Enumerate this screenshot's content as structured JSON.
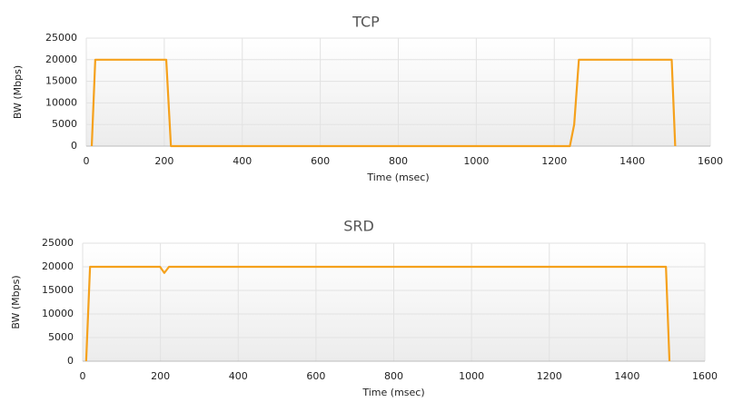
{
  "chart_data": [
    {
      "type": "line",
      "title": "TCP",
      "xlabel": "Time (msec)",
      "ylabel": "BW (Mbps)",
      "x": [
        14,
        23,
        205,
        217,
        1240,
        1251,
        1263,
        1501,
        1510
      ],
      "values": [
        0,
        20000,
        20000,
        0,
        0,
        5000,
        20000,
        20000,
        0
      ],
      "color": "#f5a11c",
      "xlim": [
        0,
        1600
      ],
      "ylim": [
        0,
        25000
      ],
      "xticks": [
        0,
        200,
        400,
        600,
        800,
        1000,
        1200,
        1400,
        1600
      ],
      "yticks": [
        0,
        5000,
        10000,
        15000,
        20000,
        25000
      ],
      "grid": true
    },
    {
      "type": "line",
      "title": "SRD",
      "xlabel": "Time (msec)",
      "ylabel": "BW (Mbps)",
      "x": [
        9,
        19,
        199,
        210,
        222,
        1500,
        1509
      ],
      "values": [
        0,
        20000,
        20000,
        18700,
        20000,
        20000,
        0
      ],
      "color": "#f5a11c",
      "xlim": [
        0,
        1600
      ],
      "ylim": [
        0,
        25000
      ],
      "xticks": [
        0,
        200,
        400,
        600,
        800,
        1000,
        1200,
        1400,
        1600
      ],
      "yticks": [
        0,
        5000,
        10000,
        15000,
        20000,
        25000
      ],
      "grid": true
    }
  ]
}
